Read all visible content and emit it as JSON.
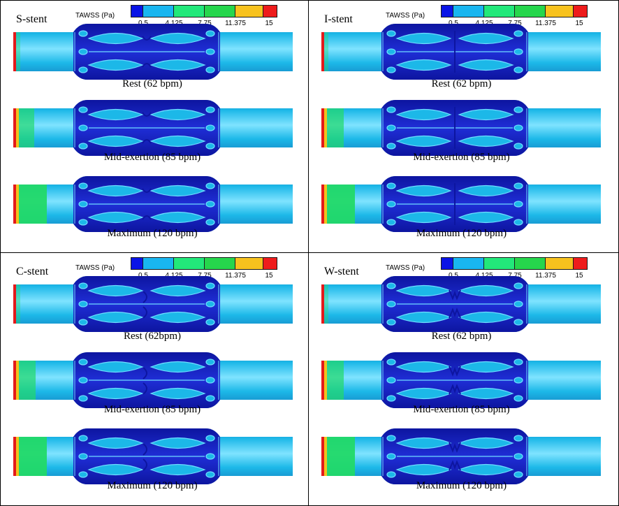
{
  "legend": {
    "title": "TAWSS (Pa)",
    "ticks": [
      "0.5",
      "4.125",
      "7.75",
      "11.375",
      "15"
    ],
    "colors": [
      "#0a14e6",
      "#19b6f0",
      "#22e87a",
      "#26d64c",
      "#f7c21e",
      "#ee1c1c"
    ]
  },
  "colors": {
    "vessel_body": "#1cb8e8",
    "vessel_dark": "#1580c0",
    "vessel_light": "#7fe3ff",
    "stent_band": "#1f2ed6",
    "stent_dark": "#0d15a0",
    "strut_light": "#6fdcff",
    "inlet_green": "#22d968",
    "inlet_red": "#e41a1a",
    "inlet_yellow": "#f2c21c"
  },
  "panels": [
    {
      "title": "S-stent",
      "states": [
        {
          "caption": "Rest (62 bpm)",
          "inlet_level": 0.05
        },
        {
          "caption": "Mid-exertion (85 bpm)",
          "inlet_level": 0.55
        },
        {
          "caption": "Maximum (120 bpm)",
          "inlet_level": 1.0
        }
      ]
    },
    {
      "title": "I-stent",
      "states": [
        {
          "caption": "Rest (62 bpm)",
          "inlet_level": 0.05
        },
        {
          "caption": "Mid-exertion (85 bpm)",
          "inlet_level": 0.6
        },
        {
          "caption": "Maximum (120 bpm)",
          "inlet_level": 1.0
        }
      ]
    },
    {
      "title": "C-stent",
      "states": [
        {
          "caption": "Rest (62bpm)",
          "inlet_level": 0.05
        },
        {
          "caption": "Mid-exertion (85 bpm)",
          "inlet_level": 0.6
        },
        {
          "caption": "Maximum (120 bpm)",
          "inlet_level": 1.0
        }
      ]
    },
    {
      "title": "W-stent",
      "states": [
        {
          "caption": "Rest (62 bpm)",
          "inlet_level": 0.05
        },
        {
          "caption": "Mid-exertion (85 bpm)",
          "inlet_level": 0.6
        },
        {
          "caption": "Maximum (120 bpm)",
          "inlet_level": 1.0
        }
      ]
    }
  ]
}
